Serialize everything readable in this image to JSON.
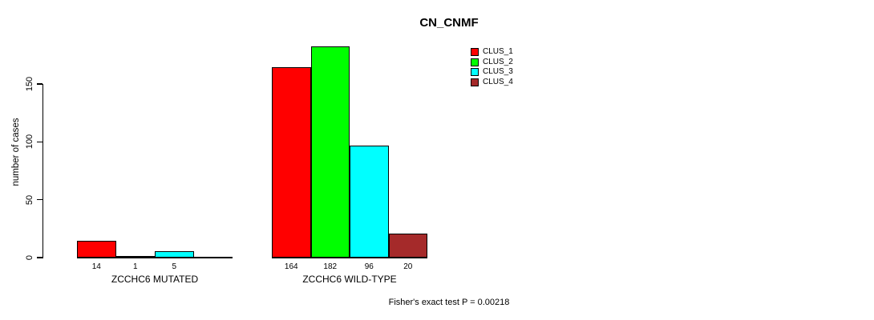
{
  "chart_data": {
    "type": "bar",
    "title": "CN_CNMF",
    "xlabel": "",
    "ylabel": "number of cases",
    "yticks": [
      0,
      50,
      100,
      150
    ],
    "ylim": [
      0,
      185
    ],
    "grid": false,
    "legend_position": "top-right",
    "categories": [
      "ZCCHC6 MUTATED",
      "ZCCHC6 WILD-TYPE"
    ],
    "series": [
      {
        "name": "CLUS_1",
        "color": "#FF0000",
        "values": [
          14,
          164
        ]
      },
      {
        "name": "CLUS_2",
        "color": "#00FF00",
        "values": [
          1,
          182
        ]
      },
      {
        "name": "CLUS_3",
        "color": "#00FFFF",
        "values": [
          5,
          96
        ]
      },
      {
        "name": "CLUS_4",
        "color": "#A52A2A",
        "values": [
          0,
          20
        ]
      }
    ],
    "bar_value_labels": [
      [
        "14",
        "1",
        "5",
        ""
      ],
      [
        "164",
        "182",
        "96",
        "20"
      ]
    ],
    "annotation": "Fisher's exact test P = 0.00218"
  }
}
